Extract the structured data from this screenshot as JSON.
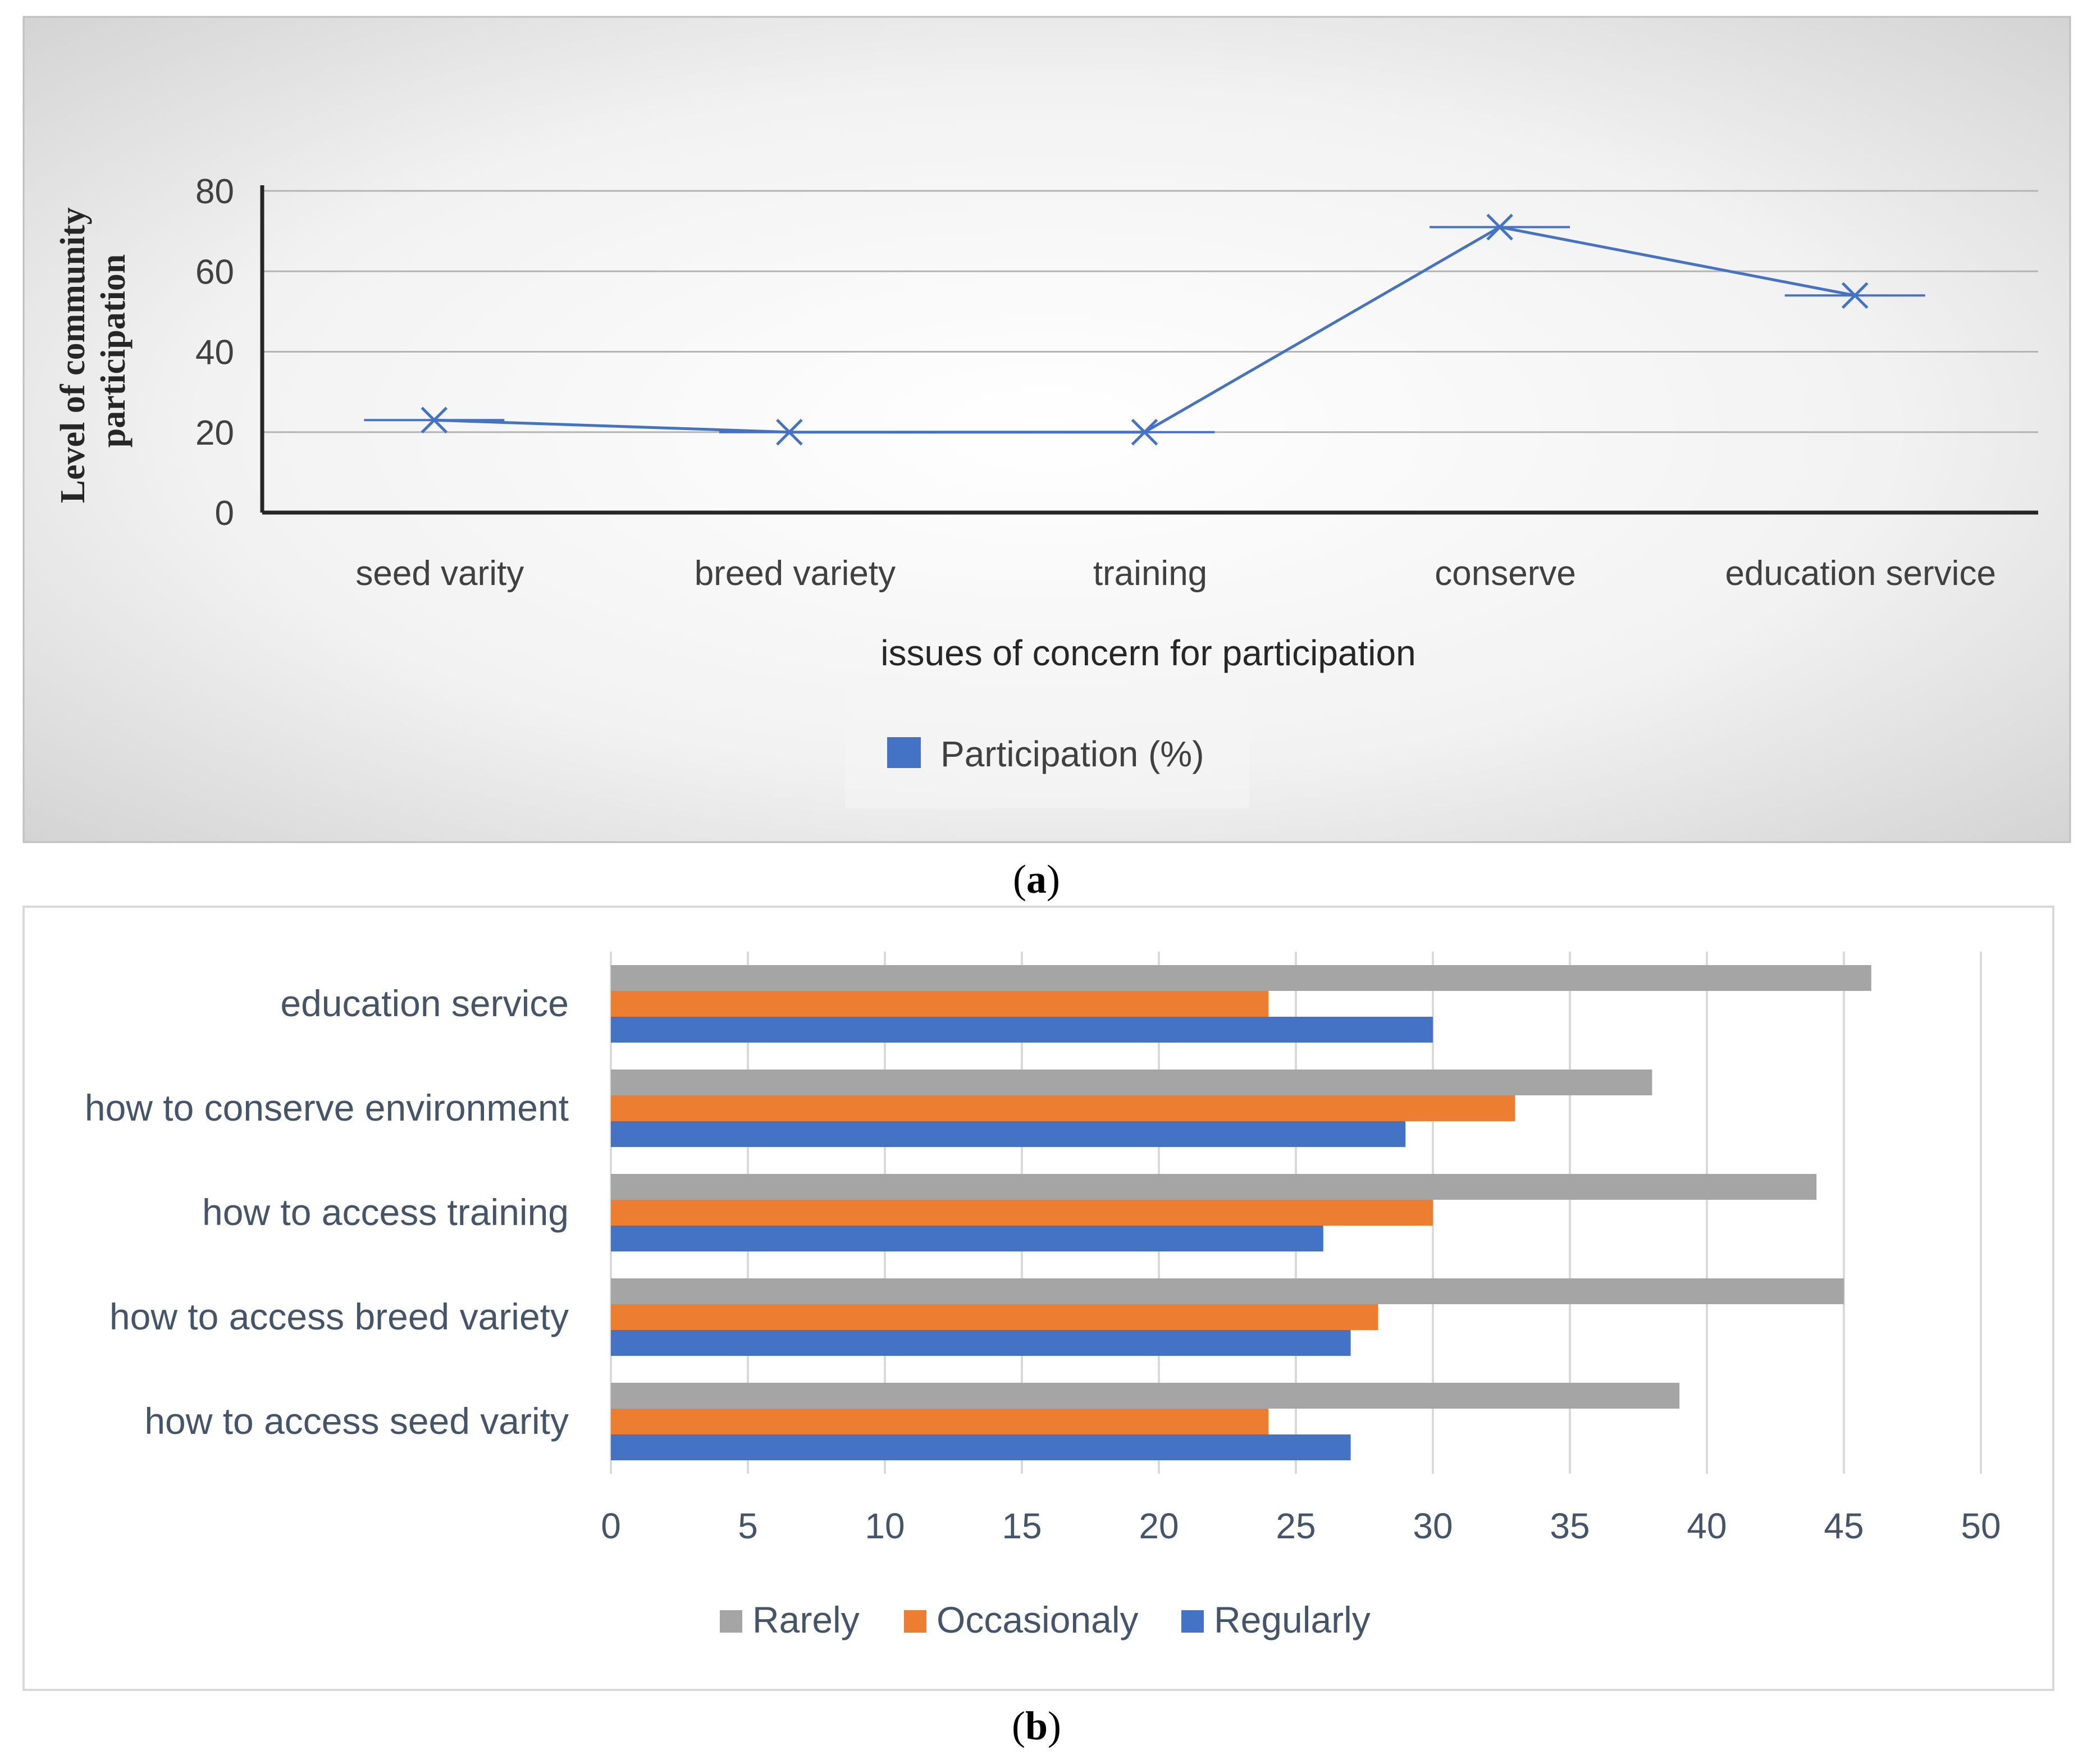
{
  "colors": {
    "line": "#4472c4",
    "rarely": "#a5a5a5",
    "occasionaly": "#ed7d31",
    "regularly": "#4472c4"
  },
  "chart_data": [
    {
      "type": "line",
      "panel_label": "(a)",
      "panel_letter": "a",
      "xlabel": "issues of concern for participation",
      "ylabel_lines": [
        "Level of community",
        "participation"
      ],
      "categories": [
        "seed varity",
        "breed variety",
        "training",
        "conserve",
        "education service"
      ],
      "series": [
        {
          "name": "Participation (%)",
          "values": [
            23,
            20,
            20,
            71,
            54
          ]
        }
      ],
      "yticks": [
        0,
        20,
        40,
        60,
        80
      ],
      "ylim": [
        0,
        80
      ],
      "grid": true,
      "legend": "bottom-center",
      "marker": "x"
    },
    {
      "type": "bar",
      "orientation": "horizontal",
      "panel_label": "(b)",
      "panel_letter": "b",
      "categories": [
        "education service",
        "how to conserve environment",
        "how to access training",
        "how to access breed variety",
        "how to access seed varity"
      ],
      "series": [
        {
          "name": "Rarely",
          "values": [
            46,
            38,
            44,
            45,
            39
          ]
        },
        {
          "name": "Occasionaly",
          "values": [
            24,
            33,
            30,
            28,
            24
          ]
        },
        {
          "name": "Regularly",
          "values": [
            30,
            29,
            26,
            27,
            27
          ]
        }
      ],
      "xticks": [
        0,
        5,
        10,
        15,
        20,
        25,
        30,
        35,
        40,
        45,
        50
      ],
      "xlim": [
        0,
        50
      ],
      "grid": true,
      "legend": "bottom-center"
    }
  ]
}
